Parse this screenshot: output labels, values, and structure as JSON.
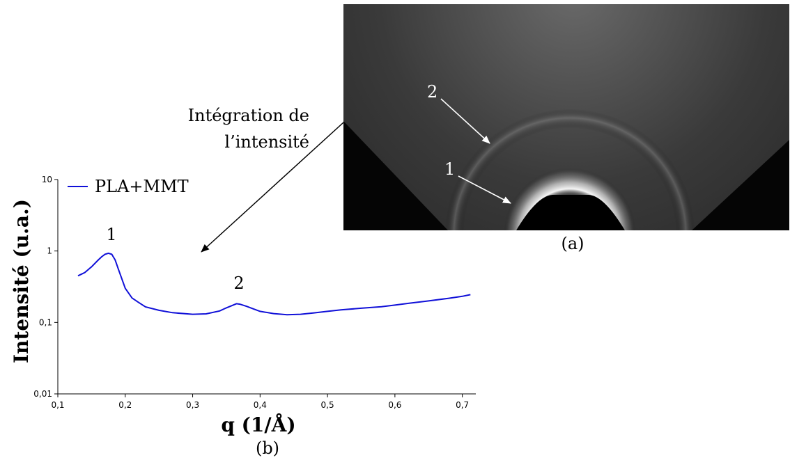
{
  "chart_data": {
    "type": "line",
    "xlabel": "q (1/Å)",
    "ylabel": "Intensité (u.a.)",
    "xlim": [
      0.1,
      0.72
    ],
    "ylim": [
      0.01,
      10
    ],
    "yscale": "log",
    "x_ticks": [
      "0,1",
      "0,2",
      "0,3",
      "0,4",
      "0,5",
      "0,6",
      "0,7"
    ],
    "x_tick_values": [
      0.1,
      0.2,
      0.3,
      0.4,
      0.5,
      0.6,
      0.7
    ],
    "y_ticks": [
      "0,01",
      "0,1",
      "1",
      "10"
    ],
    "y_tick_values": [
      0.01,
      0.1,
      1,
      10
    ],
    "legend_position": "top-left",
    "series": [
      {
        "name": "PLA+MMT",
        "color": "#1010d8",
        "x": [
          0.13,
          0.14,
          0.15,
          0.16,
          0.165,
          0.17,
          0.175,
          0.18,
          0.185,
          0.19,
          0.2,
          0.21,
          0.22,
          0.23,
          0.25,
          0.27,
          0.3,
          0.32,
          0.34,
          0.35,
          0.36,
          0.365,
          0.37,
          0.38,
          0.39,
          0.4,
          0.42,
          0.44,
          0.46,
          0.48,
          0.5,
          0.52,
          0.55,
          0.58,
          0.6,
          0.62,
          0.65,
          0.68,
          0.7,
          0.712
        ],
        "y": [
          0.45,
          0.5,
          0.6,
          0.75,
          0.83,
          0.9,
          0.93,
          0.9,
          0.75,
          0.55,
          0.3,
          0.22,
          0.19,
          0.165,
          0.148,
          0.137,
          0.13,
          0.132,
          0.145,
          0.16,
          0.175,
          0.183,
          0.18,
          0.168,
          0.155,
          0.143,
          0.133,
          0.128,
          0.13,
          0.136,
          0.143,
          0.15,
          0.158,
          0.166,
          0.175,
          0.185,
          0.2,
          0.218,
          0.232,
          0.245
        ]
      }
    ],
    "annotations": [
      "1",
      "2"
    ]
  },
  "figure": {
    "panel_a_label": "(a)",
    "panel_b_label": "(b)",
    "arrow_text_line1": "Intégration de",
    "arrow_text_line2": "l’intensité",
    "image_marker_1": "1",
    "image_marker_2": "2",
    "image_colors": {
      "background": "#161616",
      "halo_top": "#5a5a5a",
      "inner_ring": "#e8e8e8",
      "outer_ring": "#6c6c6c",
      "beamstop": "#000000"
    }
  }
}
